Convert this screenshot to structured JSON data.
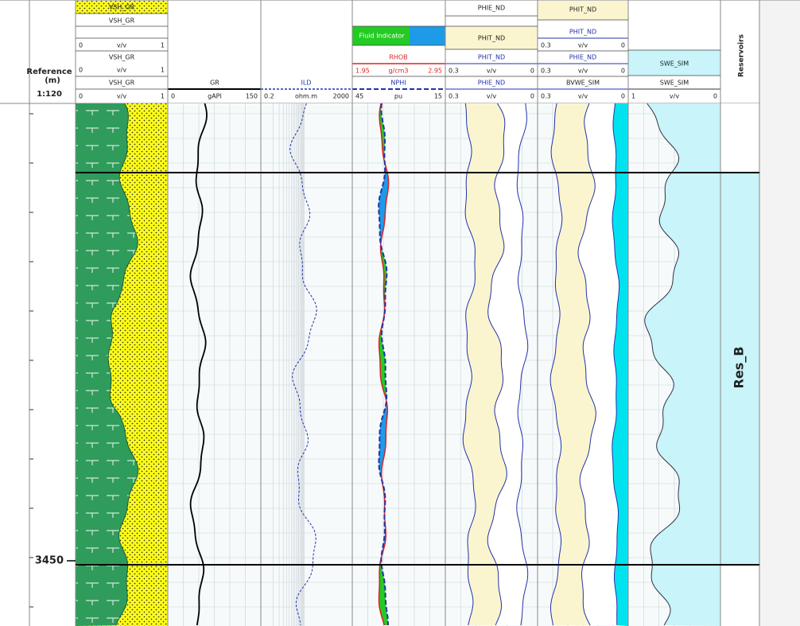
{
  "depth_track": {
    "reference": "Reference",
    "unit": "(m)",
    "scale": "1:120",
    "depth_label": "3450"
  },
  "tracks": {
    "vsh": {
      "box": "VSH_GR",
      "name1": "VSH_GR",
      "scale1": {
        "left": "0",
        "unit": "v/v",
        "right": "1"
      },
      "name2": "VSH_GR",
      "scale2": {
        "left": "0",
        "unit": "v/v",
        "right": "1"
      },
      "name3": "VSH_GR",
      "scale3": {
        "left": "0",
        "unit": "v/v",
        "right": "1"
      }
    },
    "gr": {
      "name": "GR",
      "scale": {
        "left": "0",
        "unit": "gAPI",
        "right": "150"
      }
    },
    "ild": {
      "name": "ILD",
      "scale": {
        "left": "0.2",
        "unit": "ohm.m",
        "right": "2000"
      }
    },
    "density": {
      "box": "Fluid Indicator",
      "name1": "RHOB",
      "scale1": {
        "left": "1.95",
        "unit": "g/cm3",
        "right": "2.95"
      },
      "name2": "NPHI",
      "scale2": {
        "left": "45",
        "unit": "pu",
        "right": "15"
      }
    },
    "porosity": {
      "name0": "PHIE_ND",
      "box": "PHIT_ND",
      "name1": "PHIT_ND",
      "scale1": {
        "left": "0.3",
        "unit": "v/v",
        "right": "0"
      },
      "name2": "PHIE_ND",
      "scale2": {
        "left": "0.3",
        "unit": "v/v",
        "right": "0"
      }
    },
    "bvwe": {
      "box": "PHIT_ND",
      "name1": "PHIT_ND",
      "scale1": {
        "left": "0.3",
        "unit": "v/v",
        "right": "0"
      },
      "name2": "PHIE_ND",
      "scale2": {
        "left": "0.3",
        "unit": "v/v",
        "right": "0"
      },
      "name3": "BVWE_SIM",
      "scale3": {
        "left": "0.3",
        "unit": "v/v",
        "right": "0"
      }
    },
    "swe": {
      "box": "SWE_SIM",
      "name": "SWE_SIM",
      "scale": {
        "left": "1",
        "unit": "v/v",
        "right": "0"
      }
    }
  },
  "reservoir": {
    "title": "Reservoirs",
    "zone": "Res_B"
  }
}
